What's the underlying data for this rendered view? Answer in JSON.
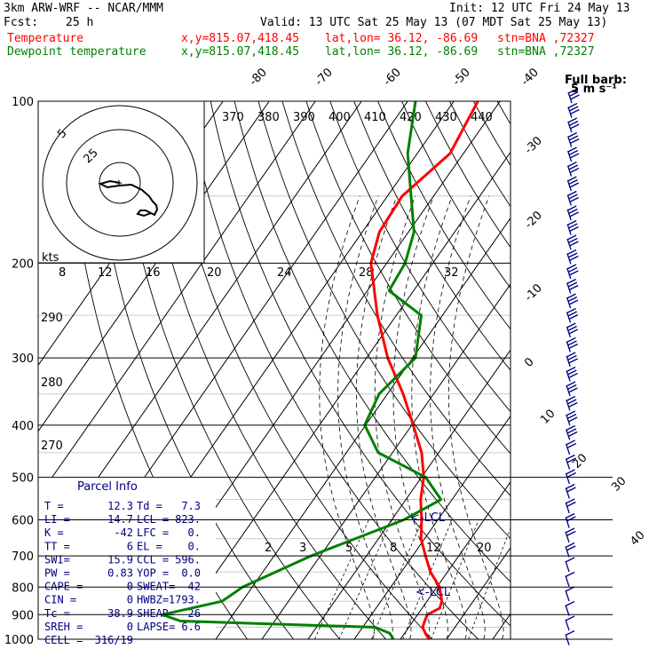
{
  "header": {
    "model": "3km ARW-WRF -- NCAR/MMM",
    "init": "Init: 12 UTC Fri 24 May 13",
    "fcst_label": "Fcst:",
    "fcst_value": "25 h",
    "valid": "Valid: 13 UTC Sat 25 May 13 (07 MDT Sat 25 May 13)",
    "temp_label": "Temperature",
    "dew_label": "Dewpoint temperature",
    "xy": "x,y=815.07,418.45",
    "latlon": "lat,lon= 36.12, -86.69",
    "stn": "stn=BNA ,72327",
    "colors": {
      "temperature": "#ff0000",
      "dewpoint": "#008000",
      "panel_text": "#000080"
    }
  },
  "barb_key": {
    "line1": "Full barb:",
    "line2": "5 m s⁻¹"
  },
  "hodograph": {
    "units": "kts",
    "ring_labels": [
      "5",
      "25"
    ]
  },
  "parcel_info": {
    "title": "Parcel Info",
    "rows": [
      [
        "T  =",
        "12.3",
        "Td  =",
        "7.3"
      ],
      [
        "LI =",
        "14.7",
        "LCL =",
        "823."
      ],
      [
        "K  =",
        "-42",
        "LFC =",
        "0."
      ],
      [
        "TT =",
        "6",
        "EL  =",
        "0."
      ],
      [
        "SWI=",
        "15.9",
        "CCL =",
        "596."
      ],
      [
        "PW =",
        "0.83",
        "YOP =",
        "0.0"
      ],
      [
        "CAPE =",
        "0",
        "SWEAT=",
        "42"
      ],
      [
        "CIN =",
        "0",
        "HWBZ=",
        "1793."
      ],
      [
        "Tc =",
        "38.9",
        "SHEAR=",
        "26"
      ],
      [
        "SREH =",
        "0",
        "LAPSE=",
        "6.6"
      ],
      [
        "CELL =",
        "316/19",
        "",
        ""
      ]
    ]
  },
  "chart_data": {
    "type": "line",
    "subtype": "skew-T log-p",
    "y_axis": {
      "label": "pressure (hPa)",
      "scale": "log",
      "range": [
        1000,
        100
      ],
      "ticks": [
        100,
        200,
        300,
        400,
        500,
        600,
        700,
        800,
        900,
        1000
      ]
    },
    "isotherm_labels": [
      -80,
      -70,
      -60,
      -50,
      -40,
      -30,
      -20,
      -10,
      0,
      10,
      20,
      30,
      40
    ],
    "theta_labels_top": [
      370,
      380,
      390,
      400,
      410,
      420,
      430,
      440
    ],
    "theta_labels_left": [
      290,
      280,
      270
    ],
    "mixing_ratio_labels_top": [
      8,
      12,
      16,
      20,
      24,
      28,
      32
    ],
    "mixing_ratio_labels_low": [
      2,
      3,
      5,
      8,
      12,
      20
    ],
    "lcl_label": "<-LCL",
    "series": [
      {
        "name": "Temperature",
        "points": [
          [
            1000,
            16.2
          ],
          [
            975,
            14.5
          ],
          [
            950,
            13.0
          ],
          [
            925,
            12.5
          ],
          [
            900,
            12.1
          ],
          [
            875,
            13.8
          ],
          [
            850,
            13.2
          ],
          [
            800,
            10.6
          ],
          [
            750,
            6.3
          ],
          [
            700,
            2.8
          ],
          [
            650,
            -0.8
          ],
          [
            600,
            -3.5
          ],
          [
            550,
            -6.8
          ],
          [
            500,
            -9.5
          ],
          [
            450,
            -13.7
          ],
          [
            400,
            -19.7
          ],
          [
            350,
            -26.6
          ],
          [
            300,
            -35.4
          ],
          [
            250,
            -44.1
          ],
          [
            200,
            -53.4
          ],
          [
            175,
            -56.3
          ],
          [
            150,
            -56.8
          ],
          [
            125,
            -52.9
          ],
          [
            100,
            -54.8
          ]
        ]
      },
      {
        "name": "Dewpoint temperature",
        "points": [
          [
            1000,
            8.5
          ],
          [
            975,
            6.8
          ],
          [
            950,
            2.7
          ],
          [
            925,
            -40.4
          ],
          [
            900,
            -45.3
          ],
          [
            850,
            -34.4
          ],
          [
            800,
            -32.1
          ],
          [
            700,
            -22.0
          ],
          [
            600,
            -7.4
          ],
          [
            550,
            -2.4
          ],
          [
            500,
            -9.1
          ],
          [
            450,
            -23.1
          ],
          [
            400,
            -30.2
          ],
          [
            350,
            -31.8
          ],
          [
            300,
            -29.4
          ],
          [
            250,
            -34.6
          ],
          [
            225,
            -45.3
          ],
          [
            200,
            -46.0
          ],
          [
            175,
            -48.8
          ],
          [
            150,
            -54.9
          ],
          [
            125,
            -62.1
          ],
          [
            100,
            -68.3
          ]
        ]
      }
    ]
  }
}
